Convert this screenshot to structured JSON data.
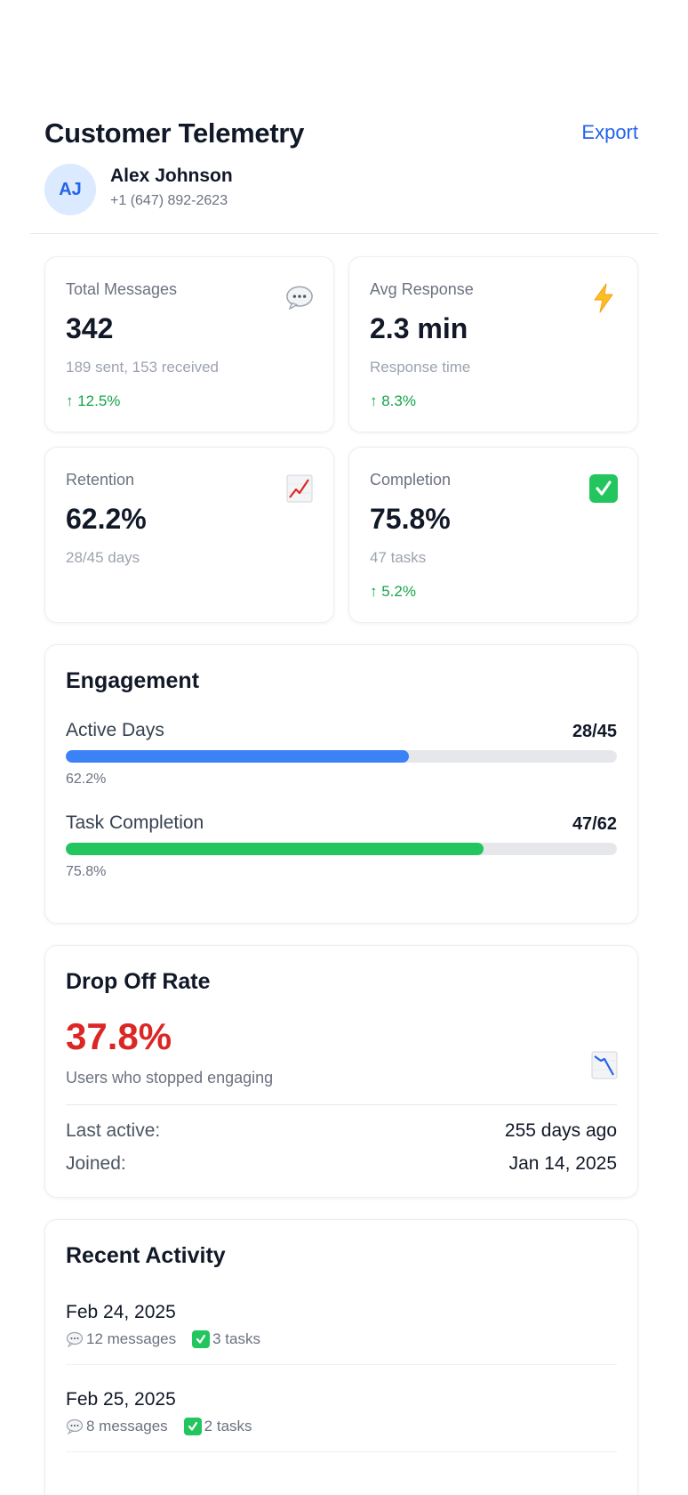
{
  "header": {
    "title": "Customer Telemetry",
    "export_label": "Export",
    "user": {
      "initials": "AJ",
      "name": "Alex Johnson",
      "phone": "+1 (647) 892-2623"
    }
  },
  "stats": [
    {
      "label": "Total Messages",
      "value": "342",
      "sub": "189 sent, 153 received",
      "delta": "↑ 12.5%",
      "icon": "speech-bubble-icon"
    },
    {
      "label": "Avg Response",
      "value": "2.3 min",
      "sub": "Response time",
      "delta": "↑ 8.3%",
      "icon": "lightning-icon"
    },
    {
      "label": "Retention",
      "value": "62.2%",
      "sub": "28/45 days",
      "delta": "",
      "icon": "chart-increasing-icon"
    },
    {
      "label": "Completion",
      "value": "75.8%",
      "sub": "47 tasks",
      "delta": "↑ 5.2%",
      "icon": "check-mark-icon"
    }
  ],
  "engagement": {
    "title": "Engagement",
    "bars": [
      {
        "label": "Active Days",
        "count": "28/45",
        "percent_label": "62.2%",
        "fraction": 0.622,
        "color": "#3b82f6"
      },
      {
        "label": "Task Completion",
        "count": "47/62",
        "percent_label": "75.8%",
        "fraction": 0.758,
        "color": "#22c55e"
      }
    ]
  },
  "dropoff": {
    "title": "Drop Off Rate",
    "value": "37.8%",
    "description": "Users who stopped engaging",
    "icon": "chart-decreasing-icon",
    "last_active_label": "Last active:",
    "last_active_value": "255 days ago",
    "joined_label": "Joined:",
    "joined_value": "Jan 14, 2025"
  },
  "activity": {
    "title": "Recent Activity",
    "items": [
      {
        "date": "Feb 24, 2025",
        "messages": "12 messages",
        "tasks": "3 tasks"
      },
      {
        "date": "Feb 25, 2025",
        "messages": "8 messages",
        "tasks": "2 tasks"
      }
    ]
  },
  "colors": {
    "accent": "#2563eb",
    "positive": "#16a34a",
    "negative": "#dc2626"
  }
}
